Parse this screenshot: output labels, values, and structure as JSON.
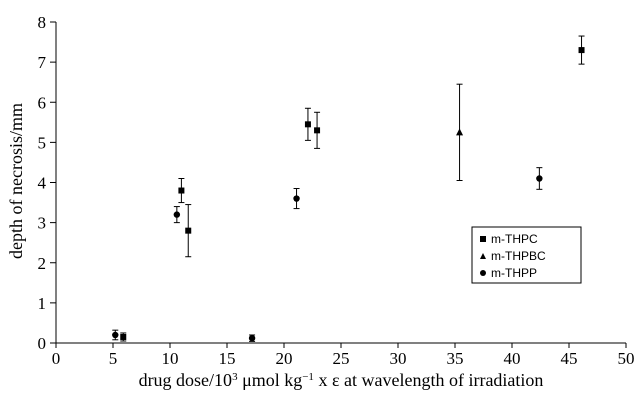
{
  "chart_data": {
    "type": "scatter",
    "title": "",
    "xlabel": "drug dose/10³ μmol kg⁻¹  x ε at wavelength of irradiation",
    "ylabel": "depth of necrosis/mm",
    "xlim": [
      0,
      50
    ],
    "ylim": [
      0,
      8
    ],
    "xticks": [
      "0",
      "5",
      "10",
      "15",
      "20",
      "25",
      "30",
      "35",
      "40",
      "45",
      "50"
    ],
    "yticks": [
      "0",
      "1",
      "2",
      "3",
      "4",
      "5",
      "6",
      "7",
      "8"
    ],
    "grid": false,
    "legend_position": "right",
    "series": [
      {
        "name": "m-THPC",
        "marker": "square",
        "points": [
          {
            "x": 5.9,
            "y": 0.15,
            "err": 0.1
          },
          {
            "x": 11.0,
            "y": 3.8,
            "err": 0.3
          },
          {
            "x": 11.6,
            "y": 2.8,
            "err": 0.65
          },
          {
            "x": 22.1,
            "y": 5.45,
            "err": 0.4
          },
          {
            "x": 22.9,
            "y": 5.3,
            "err": 0.45
          },
          {
            "x": 46.1,
            "y": 7.3,
            "err": 0.35
          }
        ]
      },
      {
        "name": "m-THPBC",
        "marker": "triangle",
        "points": [
          {
            "x": 35.4,
            "y": 5.25,
            "err": 1.2
          }
        ]
      },
      {
        "name": "m-THPP",
        "marker": "circle",
        "points": [
          {
            "x": 5.2,
            "y": 0.2,
            "err": 0.12
          },
          {
            "x": 10.6,
            "y": 3.2,
            "err": 0.2
          },
          {
            "x": 17.2,
            "y": 0.12,
            "err": 0.08
          },
          {
            "x": 21.1,
            "y": 3.6,
            "err": 0.25
          },
          {
            "x": 42.4,
            "y": 4.1,
            "err": 0.27
          }
        ]
      }
    ]
  },
  "xlabel_parts": {
    "prefix": "drug dose/10",
    "sup1": "3",
    "middle": " μmol kg",
    "sup2": "−1",
    "suffix": "  x ε at wavelength of irradiation"
  }
}
